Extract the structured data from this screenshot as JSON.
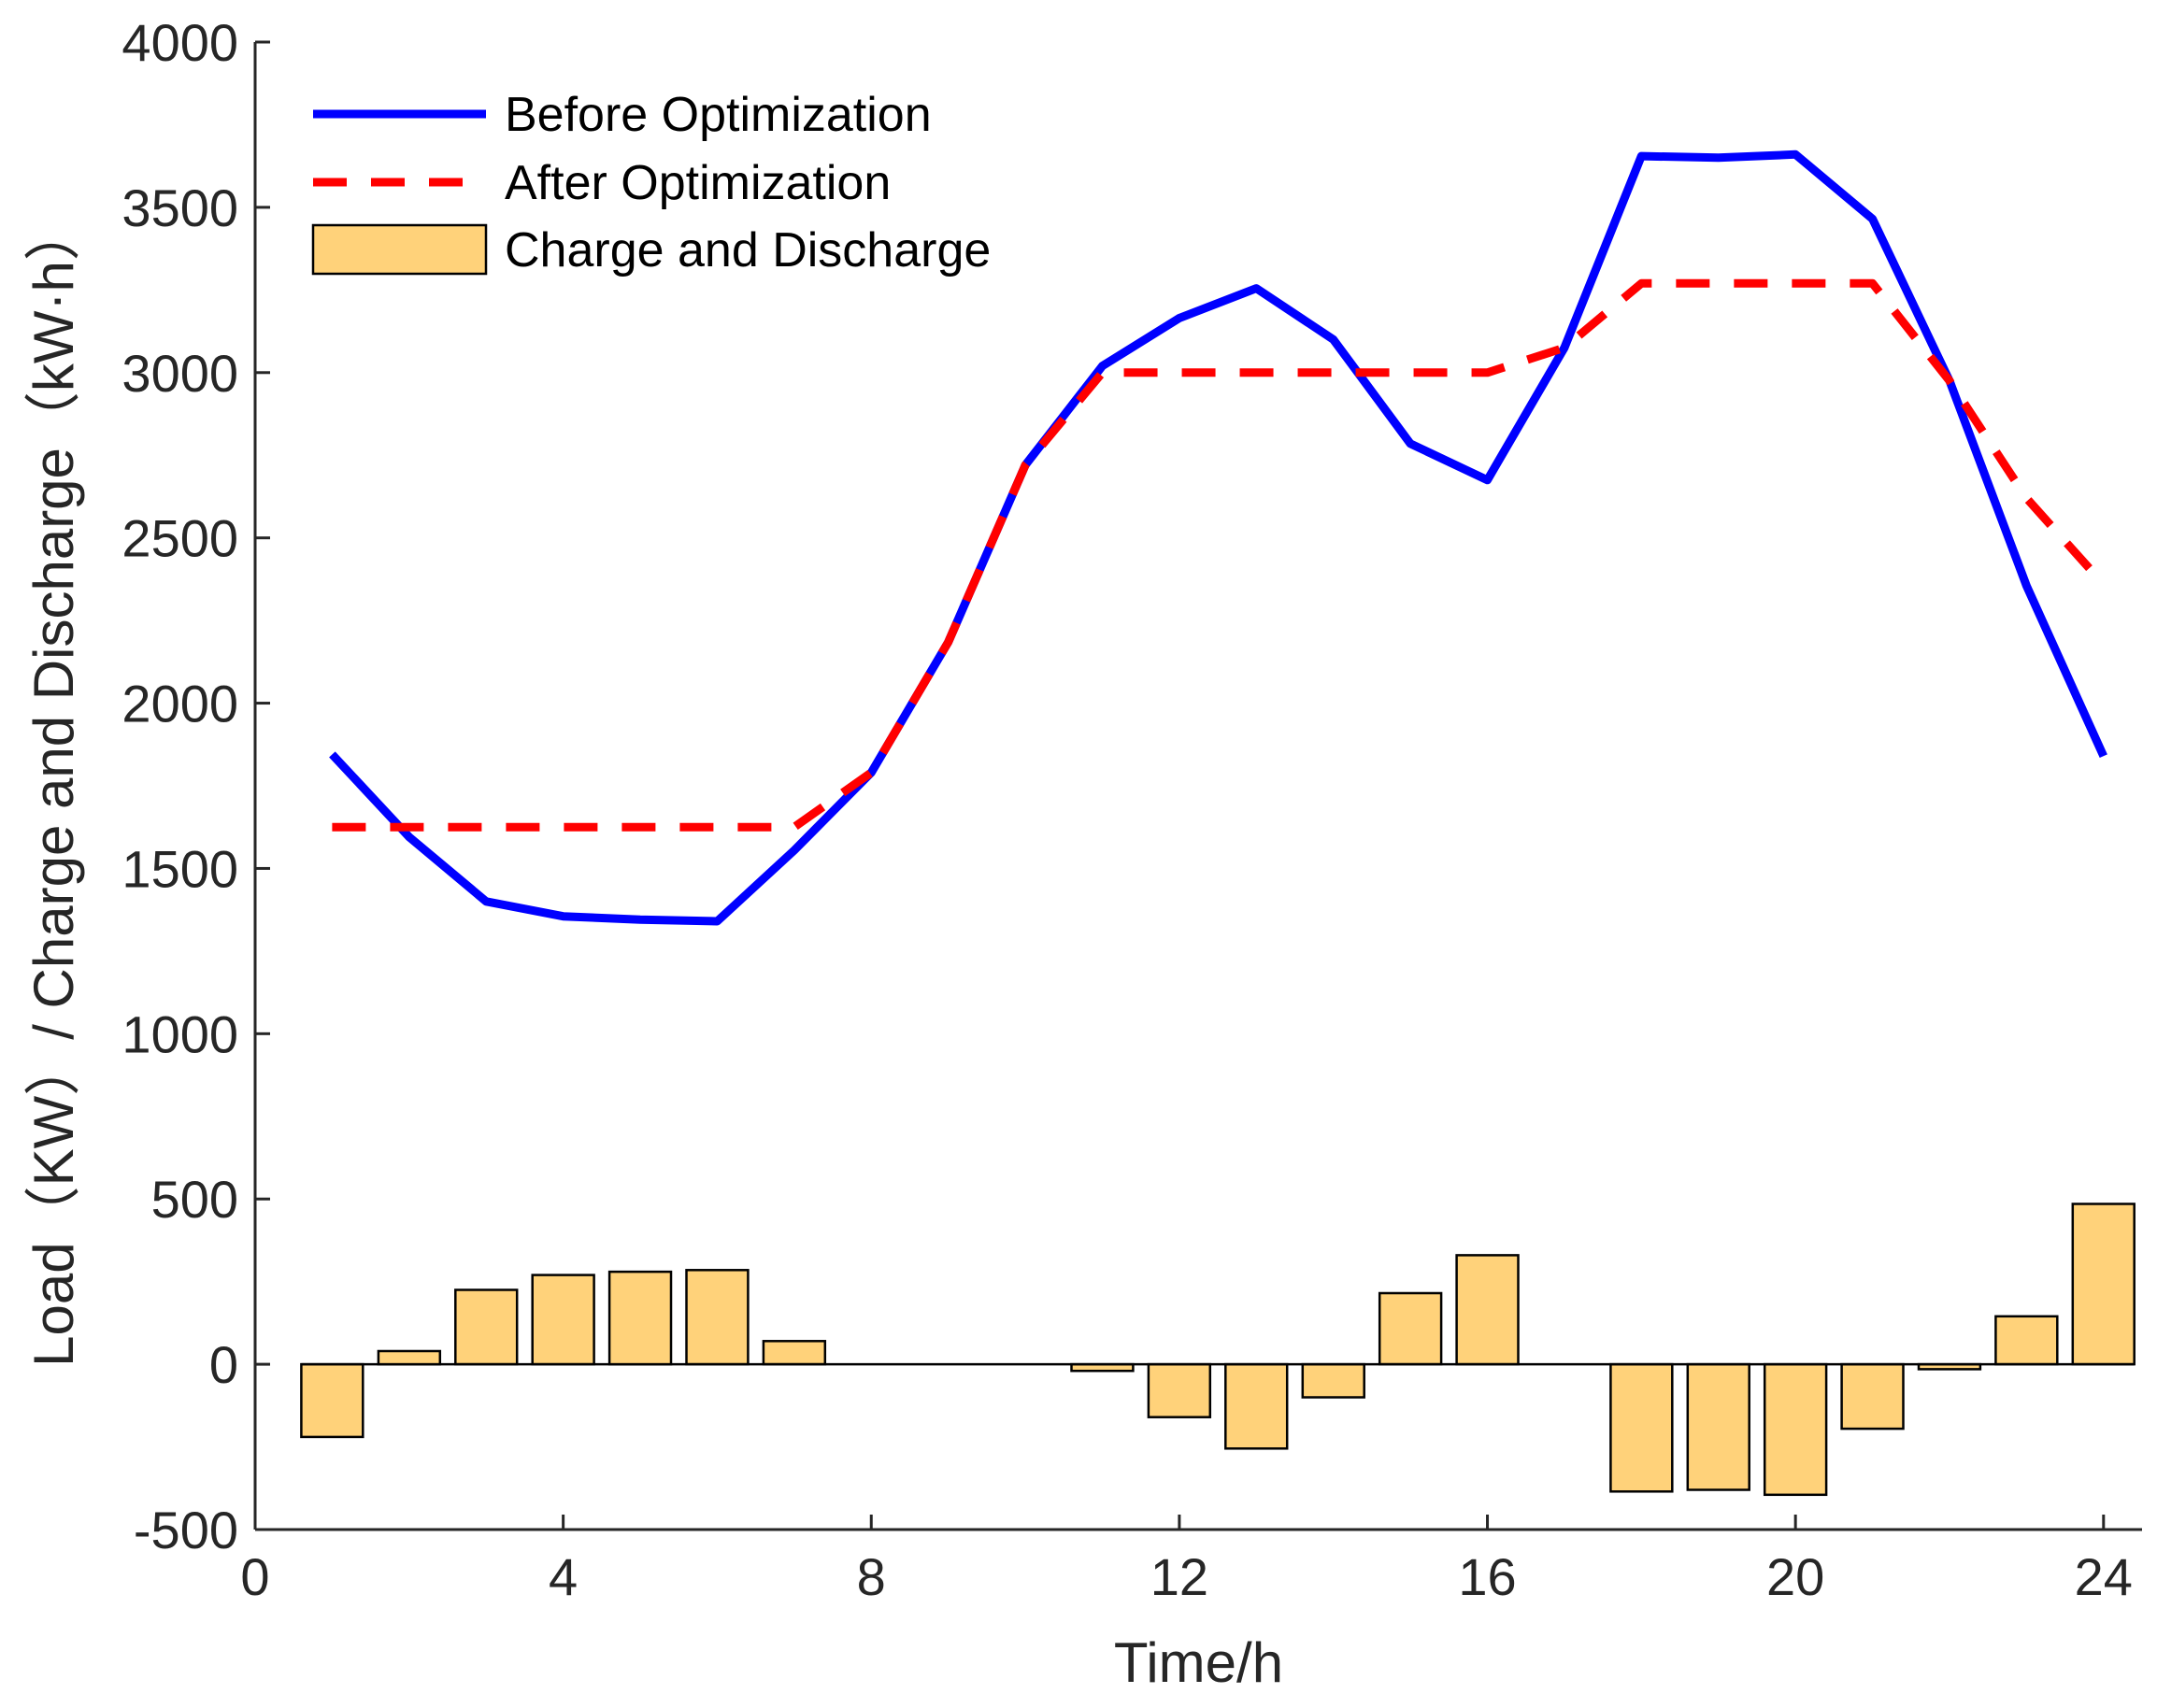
{
  "chart_data": {
    "type": "line",
    "title": "",
    "xlabel": "Time/h",
    "ylabel": "Load（KW）/ Charge and Discharge（kW·h）",
    "xlim": [
      0,
      24.5
    ],
    "ylim": [
      -500,
      4000
    ],
    "x_ticks": [
      0,
      4,
      8,
      12,
      16,
      20,
      24
    ],
    "y_ticks": [
      -500,
      0,
      500,
      1000,
      1500,
      2000,
      2500,
      3000,
      3500,
      4000
    ],
    "grid": false,
    "legend_position": "top-left",
    "x": [
      1,
      2,
      3,
      4,
      5,
      6,
      7,
      8,
      9,
      10,
      11,
      12,
      13,
      14,
      15,
      16,
      17,
      18,
      19,
      20,
      21,
      22,
      23,
      24
    ],
    "series": [
      {
        "name": "Before Optimization",
        "kind": "line",
        "style": "solid",
        "color": "#0000ff",
        "values": [
          1845,
          1595,
          1400,
          1355,
          1345,
          1340,
          1555,
          1790,
          2185,
          2720,
          3020,
          3165,
          3255,
          3100,
          2785,
          2675,
          3075,
          3655,
          3650,
          3660,
          3465,
          2975,
          2355,
          1840
        ]
      },
      {
        "name": "After Optimization",
        "kind": "line",
        "style": "dashed",
        "color": "#ff0000",
        "values": [
          1625,
          1625,
          1625,
          1625,
          1625,
          1625,
          1625,
          1790,
          2185,
          2720,
          3000,
          3000,
          3000,
          3000,
          3000,
          3000,
          3075,
          3270,
          3270,
          3270,
          3270,
          2975,
          2620,
          2360
        ]
      },
      {
        "name": "Charge and Discharge",
        "kind": "bar",
        "color": "#ffd27a",
        "edgecolor": "#000000",
        "values": [
          -220,
          40,
          225,
          270,
          280,
          285,
          70,
          0,
          0,
          0,
          -20,
          -160,
          -255,
          -100,
          215,
          330,
          0,
          -385,
          -380,
          -395,
          -195,
          -15,
          145,
          485
        ]
      }
    ]
  }
}
